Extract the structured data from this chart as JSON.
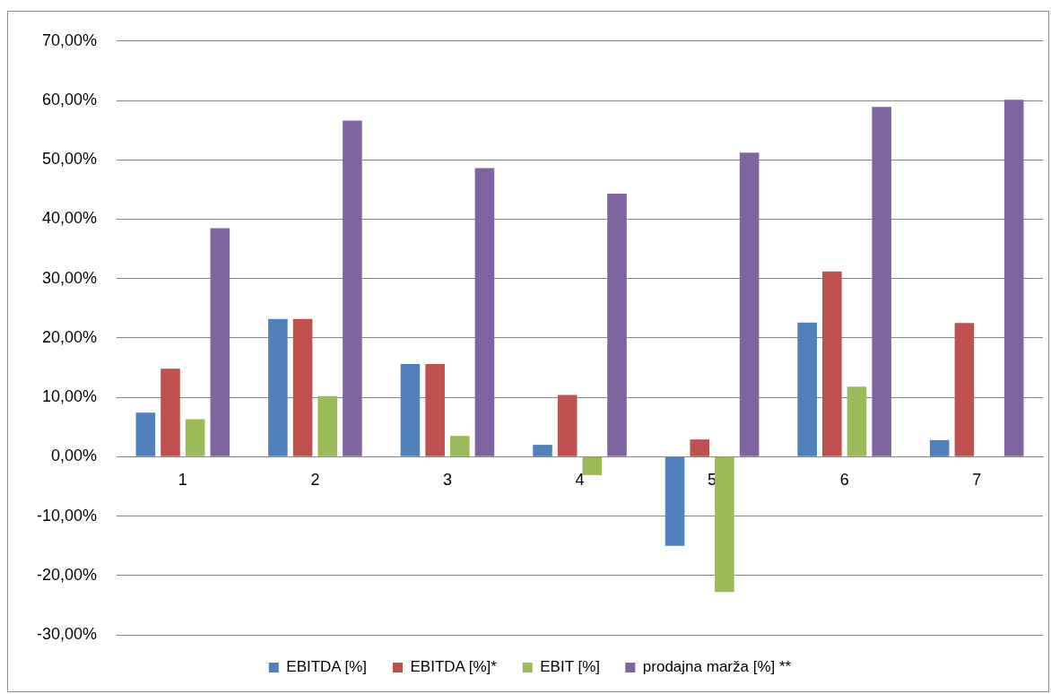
{
  "chart_data": {
    "type": "bar",
    "categories": [
      "1",
      "2",
      "3",
      "4",
      "5",
      "6",
      "7"
    ],
    "series": [
      {
        "name": "EBITDA [%]",
        "color": "#4f81bd",
        "values": [
          7.4,
          23.2,
          15.6,
          2.0,
          -15.0,
          22.6,
          2.8
        ]
      },
      {
        "name": "EBITDA [%]*",
        "color": "#c0504d",
        "values": [
          14.8,
          23.2,
          15.6,
          10.4,
          2.9,
          31.2,
          22.5
        ]
      },
      {
        "name": "EBIT [%]",
        "color": "#9bbb59",
        "values": [
          6.3,
          10.2,
          3.5,
          -3.1,
          -22.8,
          11.8,
          null
        ]
      },
      {
        "name": "prodajna marža [%] **",
        "color": "#8064a2",
        "values": [
          38.5,
          56.6,
          48.6,
          44.3,
          51.2,
          58.9,
          60.1
        ]
      }
    ],
    "ylim": [
      -30,
      70
    ],
    "yticks": [
      {
        "value": -30,
        "label": "-30,00%"
      },
      {
        "value": -20,
        "label": "-20,00%"
      },
      {
        "value": -10,
        "label": "-10,00%"
      },
      {
        "value": 0,
        "label": "0,00%"
      },
      {
        "value": 10,
        "label": "10,00%"
      },
      {
        "value": 20,
        "label": "20,00%"
      },
      {
        "value": 30,
        "label": "30,00%"
      },
      {
        "value": 40,
        "label": "40,00%"
      },
      {
        "value": 50,
        "label": "50,00%"
      },
      {
        "value": 60,
        "label": "60,00%"
      },
      {
        "value": 70,
        "label": "70,00%"
      }
    ],
    "grid": "y",
    "legend": "bottom"
  }
}
